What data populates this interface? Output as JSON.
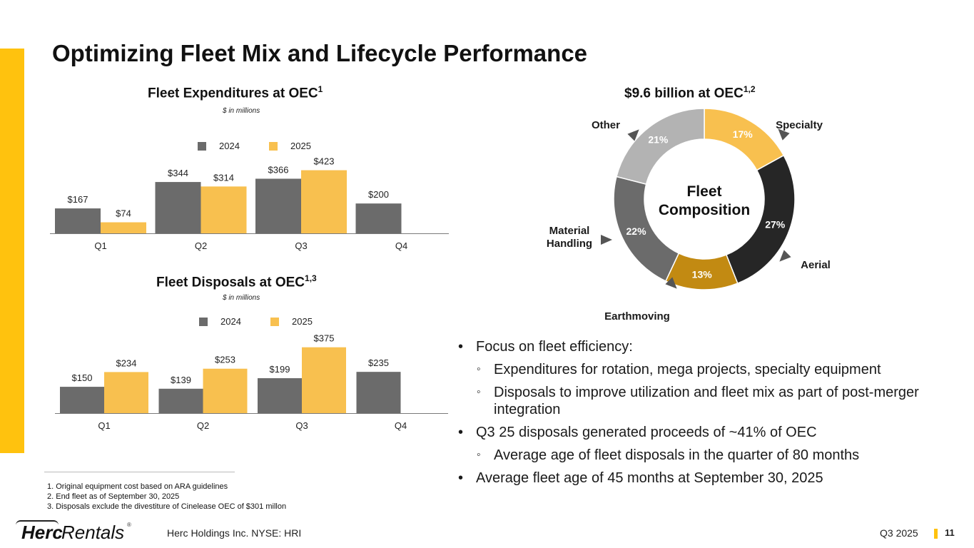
{
  "title": "Optimizing Fleet Mix and Lifecycle Performance",
  "colors": {
    "accent": "#FFC20E",
    "y2024": "#6B6B6B",
    "y2025": "#F8C04F",
    "axis": "#7a7a7a"
  },
  "chart_data": [
    {
      "type": "bar",
      "title": "Fleet Expenditures at OEC",
      "title_sup": "1",
      "subtitle": "$ in millions",
      "categories": [
        "Q1",
        "Q2",
        "Q3",
        "Q4"
      ],
      "series": [
        {
          "name": "2024",
          "values": [
            167,
            344,
            366,
            200
          ],
          "labels": [
            "$167",
            "$344",
            "$366",
            "$200"
          ]
        },
        {
          "name": "2025",
          "values": [
            74,
            314,
            423,
            null
          ],
          "labels": [
            "$74",
            "$314",
            "$423",
            ""
          ]
        }
      ],
      "ylim": [
        0,
        440
      ],
      "legend": "top-center"
    },
    {
      "type": "bar",
      "title": "Fleet Disposals at OEC",
      "title_sup": "1,3",
      "subtitle": "$ in millions",
      "categories": [
        "Q1",
        "Q2",
        "Q3",
        "Q4"
      ],
      "series": [
        {
          "name": "2024",
          "values": [
            150,
            139,
            199,
            235
          ],
          "labels": [
            "$150",
            "$139",
            "$199",
            "$235"
          ]
        },
        {
          "name": "2025",
          "values": [
            234,
            253,
            375,
            null
          ],
          "labels": [
            "$234",
            "$253",
            "$375",
            ""
          ]
        }
      ],
      "ylim": [
        0,
        390
      ],
      "legend": "top-center"
    },
    {
      "type": "pie",
      "title": "$9.6 billion at OEC",
      "title_sup": "1,2",
      "center_label": [
        "Fleet",
        "Composition"
      ],
      "slices": [
        {
          "name": "Specialty",
          "value": 17,
          "label": "17%",
          "color": "#F8C04F",
          "label_color": "#ffffff"
        },
        {
          "name": "Aerial",
          "value": 27,
          "label": "27%",
          "color": "#262626",
          "label_color": "#ffffff"
        },
        {
          "name": "Earthmoving",
          "value": 13,
          "label": "13%",
          "color": "#C28A12",
          "label_color": "#ffffff"
        },
        {
          "name": "Material Handling",
          "value": 22,
          "label": "22%",
          "color": "#6B6B6B",
          "label_color": "#ffffff"
        },
        {
          "name": "Other",
          "value": 21,
          "label": "21%",
          "color": "#B3B3B3",
          "label_color": "#ffffff"
        }
      ]
    }
  ],
  "bullets": [
    {
      "level": 1,
      "text": "Focus on fleet efficiency:"
    },
    {
      "level": 2,
      "text": "Expenditures for rotation, mega projects, specialty equipment"
    },
    {
      "level": 2,
      "text": "Disposals to improve utilization and fleet mix as part of post-merger integration"
    },
    {
      "level": 1,
      "text": "Q3 25 disposals generated proceeds of ~41% of OEC"
    },
    {
      "level": 2,
      "text": "Average age of fleet disposals in the quarter of 80 months"
    },
    {
      "level": 1,
      "text": "Average fleet age of 45 months at September 30, 2025"
    }
  ],
  "footnotes": [
    "1. Original equipment cost based on ARA guidelines",
    "2. End fleet as of September 30, 2025",
    "3. Disposals exclude the divestiture of Cinelease OEC of $301 millon"
  ],
  "footer": {
    "logo_herc": "Herc",
    "logo_rentals": "Rentals",
    "logo_reg": "®",
    "company": "Herc Holdings Inc.  NYSE: HRI",
    "period": "Q3 2025",
    "page": "11"
  }
}
